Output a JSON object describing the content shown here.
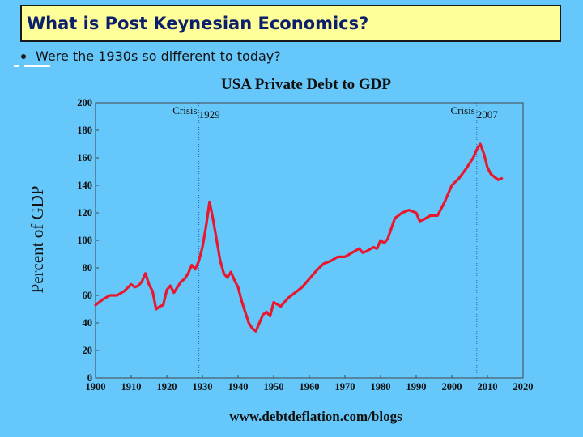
{
  "slide": {
    "title": "What is Post Keynesian Economics?",
    "bullet": "Were the 1930s so different to today?"
  },
  "colors": {
    "background": "#66c8fa",
    "title_box": "#ffff99",
    "series": "#e8172e",
    "crisis_line": "#2c5fb0"
  },
  "chart_data": {
    "type": "line",
    "title": "USA Private Debt to GDP",
    "xlabel": "",
    "ylabel": "Percent of GDP",
    "xlim": [
      1900,
      2020
    ],
    "ylim": [
      0,
      200
    ],
    "xticks": [
      1900,
      1910,
      1920,
      1930,
      1940,
      1950,
      1960,
      1970,
      1980,
      1990,
      2000,
      2010,
      2020
    ],
    "yticks": [
      0,
      20,
      40,
      60,
      80,
      100,
      120,
      140,
      160,
      180,
      200
    ],
    "grid": false,
    "legend": "none",
    "annotations": [
      {
        "label": "Crisis",
        "year_label": "1929",
        "x": 1929
      },
      {
        "label": "Crisis",
        "year_label": "2007",
        "x": 2007
      }
    ],
    "credit": "www.debtdeflation.com/blogs",
    "series": [
      {
        "x": [
          1900,
          1902,
          1904,
          1906,
          1908,
          1910,
          1911,
          1912,
          1913,
          1914,
          1915,
          1916,
          1917,
          1918,
          1919,
          1920,
          1921,
          1922,
          1923,
          1924,
          1925,
          1926,
          1927,
          1928,
          1929,
          1930,
          1931,
          1932,
          1933,
          1934,
          1935,
          1936,
          1937,
          1938,
          1939,
          1940,
          1941,
          1942,
          1943,
          1944,
          1945,
          1946,
          1947,
          1948,
          1949,
          1950,
          1952,
          1954,
          1956,
          1958,
          1960,
          1962,
          1964,
          1966,
          1968,
          1970,
          1972,
          1974,
          1975,
          1976,
          1978,
          1979,
          1980,
          1981,
          1982,
          1984,
          1986,
          1988,
          1990,
          1991,
          1992,
          1994,
          1996,
          1998,
          2000,
          2002,
          2004,
          2006,
          2007,
          2008,
          2009,
          2010,
          2011,
          2012,
          2013,
          2014
        ],
        "y": [
          53,
          57,
          60,
          60,
          63,
          68,
          66,
          67,
          70,
          76,
          68,
          63,
          50,
          52,
          53,
          64,
          67,
          62,
          66,
          70,
          72,
          76,
          82,
          79,
          85,
          95,
          110,
          128,
          115,
          100,
          85,
          76,
          73,
          77,
          71,
          66,
          56,
          48,
          40,
          36,
          34,
          40,
          46,
          48,
          45,
          55,
          52,
          58,
          62,
          66,
          72,
          78,
          83,
          85,
          88,
          88,
          91,
          94,
          91,
          92,
          95,
          94,
          100,
          98,
          101,
          116,
          120,
          122,
          120,
          114,
          115,
          118,
          118,
          128,
          140,
          145,
          152,
          160,
          166,
          170,
          163,
          153,
          148,
          146,
          144,
          145
        ]
      }
    ]
  }
}
